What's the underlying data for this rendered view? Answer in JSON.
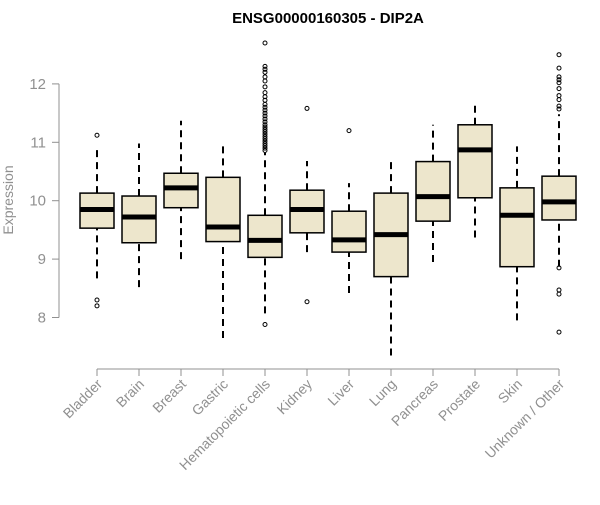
{
  "chart_data": {
    "type": "boxplot",
    "title": "ENSG00000160305 - DIP2A",
    "xlabel": "",
    "ylabel": "Expression",
    "ylim": [
      7.3,
      12.8
    ],
    "yticks": [
      8,
      9,
      10,
      11,
      12
    ],
    "grid": false,
    "colors": {
      "box_fill": "#EDE6CC",
      "box_stroke": "#000000",
      "median": "#000000",
      "axis": "#909090",
      "title": "#000000"
    },
    "categories": [
      "Bladder",
      "Brain",
      "Breast",
      "Gastric",
      "Hematopoietic cells",
      "Kidney",
      "Liver",
      "Lung",
      "Pancreas",
      "Prostate",
      "Skin",
      "Unknown / Other"
    ],
    "boxes": [
      {
        "label": "Bladder",
        "whisker_low": 8.67,
        "q1": 9.53,
        "median": 9.85,
        "q3": 10.13,
        "whisker_high": 10.87,
        "outliers": [
          11.12,
          8.3,
          8.2
        ]
      },
      {
        "label": "Brain",
        "whisker_low": 8.52,
        "q1": 9.28,
        "median": 9.72,
        "q3": 10.08,
        "whisker_high": 10.98,
        "outliers": []
      },
      {
        "label": "Breast",
        "whisker_low": 9.0,
        "q1": 9.88,
        "median": 10.22,
        "q3": 10.47,
        "whisker_high": 11.37,
        "outliers": []
      },
      {
        "label": "Gastric",
        "whisker_low": 7.65,
        "q1": 9.3,
        "median": 9.55,
        "q3": 10.4,
        "whisker_high": 10.93,
        "outliers": []
      },
      {
        "label": "Hematopoietic cells",
        "whisker_low": 8.07,
        "q1": 9.03,
        "median": 9.32,
        "q3": 9.75,
        "whisker_high": 10.82,
        "outliers": [
          12.7,
          12.3,
          12.25,
          12.2,
          12.12,
          12.05,
          11.95,
          11.85,
          11.78,
          11.72,
          11.65,
          11.6,
          11.55,
          11.5,
          11.45,
          11.4,
          11.35,
          11.3,
          11.26,
          11.22,
          11.18,
          11.14,
          11.1,
          11.06,
          11.02,
          10.98,
          10.94,
          10.9,
          10.86,
          7.88
        ]
      },
      {
        "label": "Kidney",
        "whisker_low": 9.12,
        "q1": 9.45,
        "median": 9.85,
        "q3": 10.18,
        "whisker_high": 10.68,
        "outliers": [
          11.58,
          8.27
        ]
      },
      {
        "label": "Liver",
        "whisker_low": 8.42,
        "q1": 9.12,
        "median": 9.33,
        "q3": 9.82,
        "whisker_high": 10.3,
        "outliers": [
          11.2
        ]
      },
      {
        "label": "Lung",
        "whisker_low": 7.35,
        "q1": 8.7,
        "median": 9.42,
        "q3": 10.13,
        "whisker_high": 10.68,
        "outliers": []
      },
      {
        "label": "Pancreas",
        "whisker_low": 8.95,
        "q1": 9.65,
        "median": 10.07,
        "q3": 10.67,
        "whisker_high": 11.3,
        "outliers": []
      },
      {
        "label": "Prostate",
        "whisker_low": 9.37,
        "q1": 10.05,
        "median": 10.87,
        "q3": 11.3,
        "whisker_high": 11.65,
        "outliers": []
      },
      {
        "label": "Skin",
        "whisker_low": 7.95,
        "q1": 8.87,
        "median": 9.75,
        "q3": 10.22,
        "whisker_high": 10.93,
        "outliers": []
      },
      {
        "label": "Unknown / Other",
        "whisker_low": 8.87,
        "q1": 9.67,
        "median": 9.98,
        "q3": 10.42,
        "whisker_high": 11.48,
        "outliers": [
          12.5,
          12.27,
          12.12,
          12.07,
          12.02,
          11.92,
          11.8,
          11.73,
          11.62,
          11.57,
          8.85,
          8.47,
          8.4,
          7.75
        ]
      }
    ]
  }
}
